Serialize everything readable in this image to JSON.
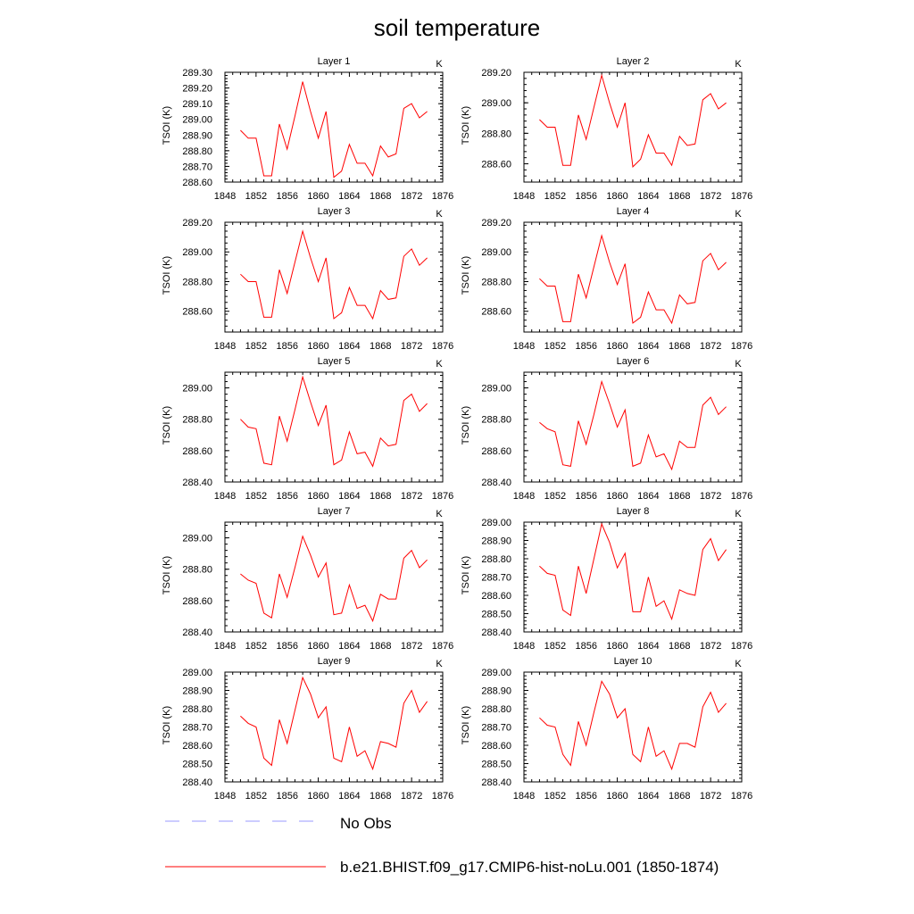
{
  "title": "soil temperature",
  "legend": [
    {
      "name": "No Obs",
      "color": "#9999ff",
      "dash": true
    },
    {
      "name": "b.e21.BHIST.f09_g17.CMIP6-hist-noLu.001 (1850-1874)",
      "color": "#ff0000",
      "dash": false
    }
  ],
  "chart_data": [
    {
      "type": "line",
      "title": "Layer 1",
      "unit": "K",
      "ylabel": "TSOI  (K)",
      "xlim": [
        1848,
        1876
      ],
      "ylim": [
        288.6,
        289.3
      ],
      "xticks": [
        "1848",
        "1852",
        "1856",
        "1860",
        "1864",
        "1868",
        "1872",
        "1876"
      ],
      "yticks": [
        "288.60",
        "288.70",
        "288.80",
        "288.90",
        "289.00",
        "289.10",
        "289.20",
        "289.30"
      ],
      "x": [
        1850,
        1851,
        1852,
        1853,
        1854,
        1855,
        1856,
        1857,
        1858,
        1859,
        1860,
        1861,
        1862,
        1863,
        1864,
        1865,
        1866,
        1867,
        1868,
        1869,
        1870,
        1871,
        1872,
        1873,
        1874
      ],
      "series": [
        {
          "name": "b.e21.BHIST.f09_g17.CMIP6-hist-noLu.001 (1850-1874)",
          "values": [
            288.93,
            288.88,
            288.88,
            288.64,
            288.64,
            288.97,
            288.81,
            289.02,
            289.24,
            289.05,
            288.88,
            289.05,
            288.63,
            288.67,
            288.84,
            288.72,
            288.72,
            288.64,
            288.83,
            288.76,
            288.78,
            289.07,
            289.1,
            289.01,
            289.05
          ]
        }
      ]
    },
    {
      "type": "line",
      "title": "Layer 2",
      "unit": "K",
      "ylabel": "TSOI  (K)",
      "xlim": [
        1848,
        1876
      ],
      "ylim": [
        288.48,
        289.2
      ],
      "xticks": [
        "1848",
        "1852",
        "1856",
        "1860",
        "1864",
        "1868",
        "1872",
        "1876"
      ],
      "yticks": [
        "288.60",
        "288.80",
        "289.00",
        "289.20"
      ],
      "x": [
        1850,
        1851,
        1852,
        1853,
        1854,
        1855,
        1856,
        1857,
        1858,
        1859,
        1860,
        1861,
        1862,
        1863,
        1864,
        1865,
        1866,
        1867,
        1868,
        1869,
        1870,
        1871,
        1872,
        1873,
        1874
      ],
      "series": [
        {
          "name": "b.e21.BHIST.f09_g17.CMIP6-hist-noLu.001 (1850-1874)",
          "values": [
            288.89,
            288.84,
            288.84,
            288.59,
            288.59,
            288.92,
            288.76,
            288.97,
            289.18,
            289.0,
            288.84,
            289.0,
            288.58,
            288.63,
            288.79,
            288.67,
            288.67,
            288.59,
            288.78,
            288.72,
            288.73,
            289.02,
            289.06,
            288.96,
            289.0
          ]
        }
      ]
    },
    {
      "type": "line",
      "title": "Layer 3",
      "unit": "K",
      "ylabel": "TSOI  (K)",
      "xlim": [
        1848,
        1876
      ],
      "ylim": [
        288.46,
        289.2
      ],
      "xticks": [
        "1848",
        "1852",
        "1856",
        "1860",
        "1864",
        "1868",
        "1872",
        "1876"
      ],
      "yticks": [
        "288.60",
        "288.80",
        "289.00",
        "289.20"
      ],
      "x": [
        1850,
        1851,
        1852,
        1853,
        1854,
        1855,
        1856,
        1857,
        1858,
        1859,
        1860,
        1861,
        1862,
        1863,
        1864,
        1865,
        1866,
        1867,
        1868,
        1869,
        1870,
        1871,
        1872,
        1873,
        1874
      ],
      "series": [
        {
          "name": "b.e21.BHIST.f09_g17.CMIP6-hist-noLu.001 (1850-1874)",
          "values": [
            288.85,
            288.8,
            288.8,
            288.56,
            288.56,
            288.88,
            288.72,
            288.93,
            289.14,
            288.96,
            288.8,
            288.96,
            288.55,
            288.59,
            288.76,
            288.64,
            288.64,
            288.55,
            288.74,
            288.68,
            288.69,
            288.97,
            289.02,
            288.91,
            288.96
          ]
        }
      ]
    },
    {
      "type": "line",
      "title": "Layer 4",
      "unit": "K",
      "ylabel": "TSOI  (K)",
      "xlim": [
        1848,
        1876
      ],
      "ylim": [
        288.46,
        289.2
      ],
      "xticks": [
        "1848",
        "1852",
        "1856",
        "1860",
        "1864",
        "1868",
        "1872",
        "1876"
      ],
      "yticks": [
        "288.60",
        "288.80",
        "289.00",
        "289.20"
      ],
      "x": [
        1850,
        1851,
        1852,
        1853,
        1854,
        1855,
        1856,
        1857,
        1858,
        1859,
        1860,
        1861,
        1862,
        1863,
        1864,
        1865,
        1866,
        1867,
        1868,
        1869,
        1870,
        1871,
        1872,
        1873,
        1874
      ],
      "series": [
        {
          "name": "b.e21.BHIST.f09_g17.CMIP6-hist-noLu.001 (1850-1874)",
          "values": [
            288.82,
            288.77,
            288.77,
            288.53,
            288.53,
            288.85,
            288.69,
            288.9,
            289.11,
            288.93,
            288.78,
            288.92,
            288.52,
            288.56,
            288.73,
            288.61,
            288.61,
            288.52,
            288.71,
            288.65,
            288.66,
            288.94,
            288.99,
            288.88,
            288.93
          ]
        }
      ]
    },
    {
      "type": "line",
      "title": "Layer 5",
      "unit": "K",
      "ylabel": "TSOI  (K)",
      "xlim": [
        1848,
        1876
      ],
      "ylim": [
        288.4,
        289.1
      ],
      "xticks": [
        "1848",
        "1852",
        "1856",
        "1860",
        "1864",
        "1868",
        "1872",
        "1876"
      ],
      "yticks": [
        "288.40",
        "288.60",
        "288.80",
        "289.00"
      ],
      "x": [
        1850,
        1851,
        1852,
        1853,
        1854,
        1855,
        1856,
        1857,
        1858,
        1859,
        1860,
        1861,
        1862,
        1863,
        1864,
        1865,
        1866,
        1867,
        1868,
        1869,
        1870,
        1871,
        1872,
        1873,
        1874
      ],
      "series": [
        {
          "name": "b.e21.BHIST.f09_g17.CMIP6-hist-noLu.001 (1850-1874)",
          "values": [
            288.8,
            288.75,
            288.74,
            288.52,
            288.51,
            288.82,
            288.66,
            288.86,
            289.07,
            288.91,
            288.76,
            288.89,
            288.51,
            288.54,
            288.72,
            288.58,
            288.59,
            288.5,
            288.68,
            288.63,
            288.64,
            288.92,
            288.96,
            288.85,
            288.9
          ]
        }
      ]
    },
    {
      "type": "line",
      "title": "Layer 6",
      "unit": "K",
      "ylabel": "TSOI  (K)",
      "xlim": [
        1848,
        1876
      ],
      "ylim": [
        288.4,
        289.1
      ],
      "xticks": [
        "1848",
        "1852",
        "1856",
        "1860",
        "1864",
        "1868",
        "1872",
        "1876"
      ],
      "yticks": [
        "288.40",
        "288.60",
        "288.80",
        "289.00"
      ],
      "x": [
        1850,
        1851,
        1852,
        1853,
        1854,
        1855,
        1856,
        1857,
        1858,
        1859,
        1860,
        1861,
        1862,
        1863,
        1864,
        1865,
        1866,
        1867,
        1868,
        1869,
        1870,
        1871,
        1872,
        1873,
        1874
      ],
      "series": [
        {
          "name": "b.e21.BHIST.f09_g17.CMIP6-hist-noLu.001 (1850-1874)",
          "values": [
            288.78,
            288.74,
            288.72,
            288.51,
            288.5,
            288.79,
            288.64,
            288.83,
            289.04,
            288.9,
            288.75,
            288.86,
            288.5,
            288.52,
            288.7,
            288.56,
            288.58,
            288.48,
            288.66,
            288.62,
            288.62,
            288.89,
            288.94,
            288.83,
            288.88
          ]
        }
      ]
    },
    {
      "type": "line",
      "title": "Layer 7",
      "unit": "K",
      "ylabel": "TSOI  (K)",
      "xlim": [
        1848,
        1876
      ],
      "ylim": [
        288.4,
        289.1
      ],
      "xticks": [
        "1848",
        "1852",
        "1856",
        "1860",
        "1864",
        "1868",
        "1872",
        "1876"
      ],
      "yticks": [
        "288.40",
        "288.60",
        "288.80",
        "289.00"
      ],
      "x": [
        1850,
        1851,
        1852,
        1853,
        1854,
        1855,
        1856,
        1857,
        1858,
        1859,
        1860,
        1861,
        1862,
        1863,
        1864,
        1865,
        1866,
        1867,
        1868,
        1869,
        1870,
        1871,
        1872,
        1873,
        1874
      ],
      "series": [
        {
          "name": "b.e21.BHIST.f09_g17.CMIP6-hist-noLu.001 (1850-1874)",
          "values": [
            288.77,
            288.73,
            288.71,
            288.52,
            288.49,
            288.77,
            288.62,
            288.81,
            289.01,
            288.89,
            288.75,
            288.84,
            288.51,
            288.52,
            288.7,
            288.55,
            288.57,
            288.47,
            288.64,
            288.61,
            288.61,
            288.87,
            288.92,
            288.81,
            288.86
          ]
        }
      ]
    },
    {
      "type": "line",
      "title": "Layer 8",
      "unit": "K",
      "ylabel": "TSOI  (K)",
      "xlim": [
        1848,
        1876
      ],
      "ylim": [
        288.4,
        289.0
      ],
      "xticks": [
        "1848",
        "1852",
        "1856",
        "1860",
        "1864",
        "1868",
        "1872",
        "1876"
      ],
      "yticks": [
        "288.40",
        "288.50",
        "288.60",
        "288.70",
        "288.80",
        "288.90",
        "289.00"
      ],
      "x": [
        1850,
        1851,
        1852,
        1853,
        1854,
        1855,
        1856,
        1857,
        1858,
        1859,
        1860,
        1861,
        1862,
        1863,
        1864,
        1865,
        1866,
        1867,
        1868,
        1869,
        1870,
        1871,
        1872,
        1873,
        1874
      ],
      "series": [
        {
          "name": "b.e21.BHIST.f09_g17.CMIP6-hist-noLu.001 (1850-1874)",
          "values": [
            288.76,
            288.72,
            288.71,
            288.52,
            288.49,
            288.76,
            288.61,
            288.8,
            288.99,
            288.89,
            288.75,
            288.83,
            288.51,
            288.51,
            288.7,
            288.54,
            288.57,
            288.47,
            288.63,
            288.61,
            288.6,
            288.85,
            288.91,
            288.79,
            288.85
          ]
        }
      ]
    },
    {
      "type": "line",
      "title": "Layer 9",
      "unit": "K",
      "ylabel": "TSOI  (K)",
      "xlim": [
        1848,
        1876
      ],
      "ylim": [
        288.4,
        289.0
      ],
      "xticks": [
        "1848",
        "1852",
        "1856",
        "1860",
        "1864",
        "1868",
        "1872",
        "1876"
      ],
      "yticks": [
        "288.40",
        "288.50",
        "288.60",
        "288.70",
        "288.80",
        "288.90",
        "289.00"
      ],
      "x": [
        1850,
        1851,
        1852,
        1853,
        1854,
        1855,
        1856,
        1857,
        1858,
        1859,
        1860,
        1861,
        1862,
        1863,
        1864,
        1865,
        1866,
        1867,
        1868,
        1869,
        1870,
        1871,
        1872,
        1873,
        1874
      ],
      "series": [
        {
          "name": "b.e21.BHIST.f09_g17.CMIP6-hist-noLu.001 (1850-1874)",
          "values": [
            288.76,
            288.72,
            288.7,
            288.53,
            288.49,
            288.74,
            288.61,
            288.79,
            288.97,
            288.88,
            288.75,
            288.81,
            288.53,
            288.51,
            288.7,
            288.54,
            288.57,
            288.47,
            288.62,
            288.61,
            288.59,
            288.83,
            288.9,
            288.78,
            288.84
          ]
        }
      ]
    },
    {
      "type": "line",
      "title": "Layer 10",
      "unit": "K",
      "ylabel": "TSOI  (K)",
      "xlim": [
        1848,
        1876
      ],
      "ylim": [
        288.4,
        289.0
      ],
      "xticks": [
        "1848",
        "1852",
        "1856",
        "1860",
        "1864",
        "1868",
        "1872",
        "1876"
      ],
      "yticks": [
        "288.40",
        "288.50",
        "288.60",
        "288.70",
        "288.80",
        "288.90",
        "289.00"
      ],
      "x": [
        1850,
        1851,
        1852,
        1853,
        1854,
        1855,
        1856,
        1857,
        1858,
        1859,
        1860,
        1861,
        1862,
        1863,
        1864,
        1865,
        1866,
        1867,
        1868,
        1869,
        1870,
        1871,
        1872,
        1873,
        1874
      ],
      "series": [
        {
          "name": "b.e21.BHIST.f09_g17.CMIP6-hist-noLu.001 (1850-1874)",
          "values": [
            288.75,
            288.71,
            288.7,
            288.55,
            288.49,
            288.73,
            288.6,
            288.78,
            288.95,
            288.88,
            288.75,
            288.8,
            288.55,
            288.51,
            288.7,
            288.54,
            288.57,
            288.47,
            288.61,
            288.61,
            288.59,
            288.81,
            288.89,
            288.78,
            288.83
          ]
        }
      ]
    }
  ]
}
